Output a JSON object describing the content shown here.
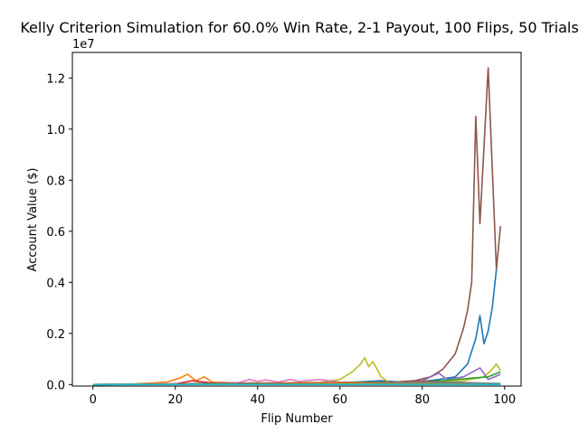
{
  "chart_data": {
    "type": "line",
    "title": "Kelly Criterion Simulation for 60.0% Win Rate, 2-1 Payout, 100 Flips, 50 Trials",
    "xlabel": "Flip Number",
    "ylabel": "Account Value ($)",
    "y_exponent_label": "1e7",
    "xlim": [
      -5,
      104
    ],
    "ylim": [
      -60000,
      13000000
    ],
    "x_ticks": [
      0,
      20,
      40,
      60,
      80,
      100
    ],
    "x_tick_labels": [
      "0",
      "20",
      "40",
      "60",
      "80",
      "100"
    ],
    "y_ticks": [
      0,
      2000000,
      4000000,
      6000000,
      8000000,
      10000000,
      12000000
    ],
    "y_tick_labels": [
      "0.0",
      "0.2",
      "0.4",
      "0.6",
      "0.8",
      "1.0",
      "1.2"
    ],
    "grid": false,
    "series": [
      {
        "color": "#8c564b",
        "points": [
          [
            0,
            1000
          ],
          [
            20,
            8000
          ],
          [
            40,
            25000
          ],
          [
            60,
            80000
          ],
          [
            70,
            60000
          ],
          [
            78,
            150000
          ],
          [
            82,
            300000
          ],
          [
            85,
            600000
          ],
          [
            88,
            1200000
          ],
          [
            90,
            2200000
          ],
          [
            91,
            2900000
          ],
          [
            92,
            4000000
          ],
          [
            93,
            10500000
          ],
          [
            94,
            6300000
          ],
          [
            96,
            12400000
          ],
          [
            98,
            4500000
          ],
          [
            99,
            6200000
          ]
        ]
      },
      {
        "color": "#1f77b4",
        "points": [
          [
            0,
            1000
          ],
          [
            20,
            10000
          ],
          [
            40,
            30000
          ],
          [
            60,
            60000
          ],
          [
            70,
            150000
          ],
          [
            75,
            100000
          ],
          [
            80,
            120000
          ],
          [
            84,
            200000
          ],
          [
            88,
            300000
          ],
          [
            91,
            800000
          ],
          [
            93,
            1800000
          ],
          [
            94,
            2700000
          ],
          [
            95,
            1600000
          ],
          [
            96,
            2100000
          ],
          [
            97,
            3000000
          ],
          [
            98,
            4500000
          ]
        ]
      },
      {
        "color": "#bcbd22",
        "points": [
          [
            0,
            1000
          ],
          [
            30,
            50000
          ],
          [
            55,
            80000
          ],
          [
            60,
            200000
          ],
          [
            63,
            500000
          ],
          [
            65,
            800000
          ],
          [
            66,
            1050000
          ],
          [
            67,
            700000
          ],
          [
            68,
            900000
          ],
          [
            70,
            300000
          ],
          [
            72,
            80000
          ],
          [
            80,
            60000
          ],
          [
            90,
            150000
          ],
          [
            95,
            300000
          ],
          [
            97,
            600000
          ],
          [
            98,
            800000
          ],
          [
            99,
            550000
          ]
        ]
      },
      {
        "color": "#ff7f0e",
        "points": [
          [
            0,
            1000
          ],
          [
            10,
            20000
          ],
          [
            18,
            100000
          ],
          [
            21,
            250000
          ],
          [
            23,
            400000
          ],
          [
            25,
            150000
          ],
          [
            27,
            300000
          ],
          [
            29,
            100000
          ],
          [
            35,
            60000
          ],
          [
            50,
            40000
          ],
          [
            70,
            30000
          ],
          [
            99,
            20000
          ]
        ]
      },
      {
        "color": "#e377c2",
        "points": [
          [
            0,
            1000
          ],
          [
            35,
            60000
          ],
          [
            38,
            200000
          ],
          [
            40,
            120000
          ],
          [
            42,
            180000
          ],
          [
            45,
            100000
          ],
          [
            48,
            200000
          ],
          [
            50,
            120000
          ],
          [
            55,
            200000
          ],
          [
            60,
            90000
          ],
          [
            70,
            40000
          ],
          [
            99,
            20000
          ]
        ]
      },
      {
        "color": "#9467bd",
        "points": [
          [
            0,
            1000
          ],
          [
            40,
            30000
          ],
          [
            60,
            50000
          ],
          [
            75,
            80000
          ],
          [
            80,
            150000
          ],
          [
            84,
            450000
          ],
          [
            86,
            200000
          ],
          [
            90,
            300000
          ],
          [
            94,
            650000
          ],
          [
            96,
            200000
          ],
          [
            99,
            400000
          ]
        ]
      },
      {
        "color": "#2ca02c",
        "points": [
          [
            0,
            1000
          ],
          [
            45,
            50000
          ],
          [
            60,
            80000
          ],
          [
            75,
            100000
          ],
          [
            85,
            150000
          ],
          [
            92,
            250000
          ],
          [
            96,
            300000
          ],
          [
            99,
            500000
          ]
        ]
      },
      {
        "color": "#d62728",
        "points": [
          [
            0,
            1000
          ],
          [
            20,
            20000
          ],
          [
            24,
            150000
          ],
          [
            30,
            40000
          ],
          [
            50,
            60000
          ],
          [
            70,
            80000
          ],
          [
            80,
            120000
          ],
          [
            90,
            60000
          ],
          [
            99,
            30000
          ]
        ]
      },
      {
        "color": "#7f7f7f",
        "points": [
          [
            0,
            1000
          ],
          [
            30,
            20000
          ],
          [
            50,
            40000
          ],
          [
            65,
            60000
          ],
          [
            80,
            100000
          ],
          [
            90,
            80000
          ],
          [
            99,
            40000
          ]
        ]
      },
      {
        "color": "#17becf",
        "points": [
          [
            0,
            1000
          ],
          [
            25,
            20000
          ],
          [
            50,
            30000
          ],
          [
            75,
            40000
          ],
          [
            99,
            20000
          ]
        ]
      },
      {
        "color": "#1f77b4",
        "points": [
          [
            0,
            1000
          ],
          [
            30,
            30000
          ],
          [
            50,
            20000
          ],
          [
            70,
            50000
          ],
          [
            99,
            10000
          ]
        ]
      },
      {
        "color": "#ff7f0e",
        "points": [
          [
            0,
            1000
          ],
          [
            40,
            20000
          ],
          [
            60,
            50000
          ],
          [
            80,
            30000
          ],
          [
            99,
            5000
          ]
        ]
      },
      {
        "color": "#2ca02c",
        "points": [
          [
            0,
            1000
          ],
          [
            50,
            10000
          ],
          [
            99,
            3000
          ]
        ]
      },
      {
        "color": "#17becf",
        "points": [
          [
            0,
            1000
          ],
          [
            50,
            5000
          ],
          [
            99,
            1000
          ]
        ]
      }
    ]
  }
}
